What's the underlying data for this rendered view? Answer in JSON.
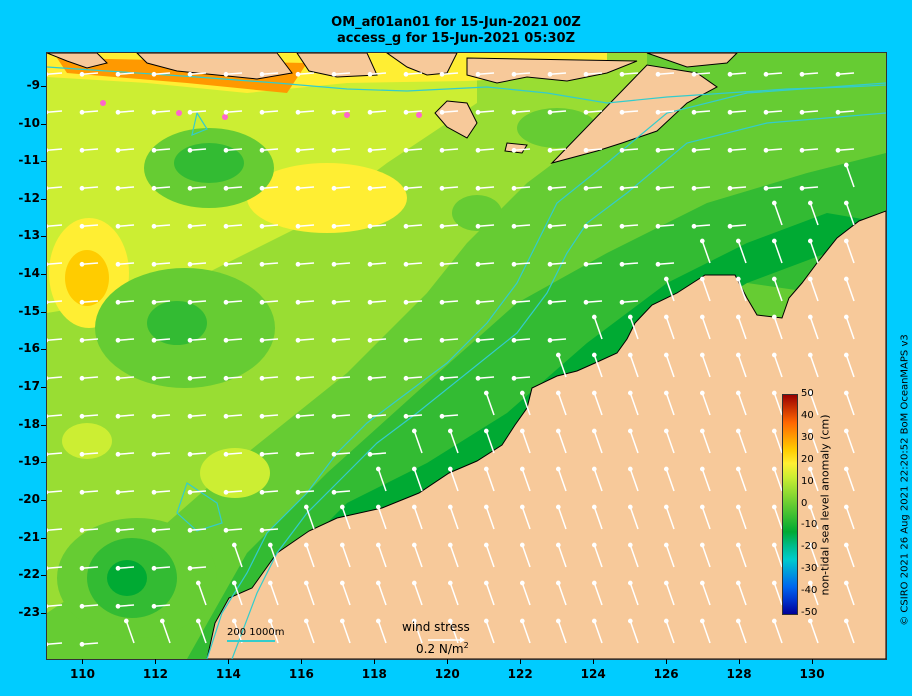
{
  "title": {
    "line1": "OM_af01an01 for 15-Jun-2021 00Z",
    "line2": "access_g for 15-Jun-2021 05:30Z"
  },
  "axes": {
    "longitude_ticks": [
      110,
      112,
      114,
      116,
      118,
      120,
      122,
      124,
      126,
      128,
      130
    ],
    "latitude_ticks": [
      -9,
      -10,
      -11,
      -12,
      -13,
      -14,
      -15,
      -16,
      -17,
      -18,
      -19,
      -20,
      -21,
      -22,
      -23
    ],
    "lon_range": [
      109.0,
      132.0
    ],
    "lat_range": [
      -8.1,
      -24.2
    ]
  },
  "colorbar": {
    "title": "non-tidal sea level anomaly (cm)",
    "tick_labels": [
      "50",
      "40",
      "30",
      "20",
      "10",
      "0",
      "-10",
      "-20",
      "-30",
      "-40",
      "-50"
    ],
    "colors": [
      "#990000",
      "#cc3300",
      "#ff6600",
      "#ff9900",
      "#ffcc00",
      "#ffee33",
      "#ccee33",
      "#99dd33",
      "#66cc33",
      "#33bb33",
      "#00aa33",
      "#00bb88",
      "#00cccc",
      "#0099dd",
      "#0066ee",
      "#0033cc",
      "#000099"
    ]
  },
  "legend": {
    "wind_title": "wind stress",
    "wind_units": "0.2 N/m",
    "wind_units_sup": "2",
    "depth_contours": "200  1000m"
  },
  "credit": "© CSIRO 2021   26 Aug 2021 22:20:52 BoM OceanMAPS v3",
  "colors": {
    "background": "#00ccff",
    "land": "#f7c99a",
    "contour": "#33cccc"
  }
}
